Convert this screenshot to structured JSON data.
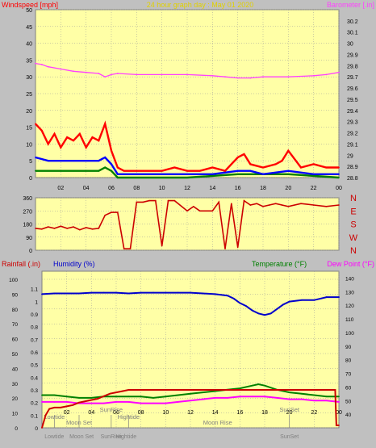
{
  "colors": {
    "frame": "#c0c0c0",
    "plot_bg": "#ffffa6",
    "grid": "#9a9a9a",
    "wind_max": "#ff0000",
    "wind_avg": "#0000ff",
    "wind_min": "#008000",
    "barometer": "#ff40ff",
    "direction": "#cc0000",
    "humidity": "#0000cc",
    "temperature": "#008000",
    "dew_point": "#ff00ff",
    "rainfall": "#cc0000",
    "annotation": "#808080"
  },
  "chart_data": [
    {
      "type": "line",
      "name": "wind-barometer",
      "title": "24 hour graph day : May 01 2020",
      "ylabel_left": "Windspeed [mph]",
      "ylabel_right": "Barometer [.in]",
      "xticks": [
        "02",
        "04",
        "06",
        "08",
        "10",
        "12",
        "14",
        "16",
        "18",
        "20",
        "22",
        "00"
      ],
      "xlim": [
        0,
        24
      ],
      "ylim_left": [
        0,
        50
      ],
      "yticks_left": [
        "0",
        "5",
        "10",
        "15",
        "20",
        "25",
        "30",
        "35",
        "40",
        "45",
        "50"
      ],
      "ylim_right": [
        28.8,
        30.3
      ],
      "yticks_right": [
        "28.8",
        "28.9",
        "29",
        "29.1",
        "29.2",
        "29.3",
        "29.4",
        "29.5",
        "29.6",
        "29.7",
        "29.8",
        "29.9",
        "30",
        "30.1",
        "30.2"
      ],
      "grid": true,
      "series": [
        {
          "name": "Barometer",
          "axis": "right",
          "x": [
            0,
            0.5,
            1,
            2,
            3,
            4,
            5,
            5.5,
            6,
            6.5,
            8,
            10,
            12,
            14,
            15,
            16,
            17,
            18,
            20,
            22,
            23,
            24
          ],
          "values": [
            29.82,
            29.81,
            29.79,
            29.77,
            29.75,
            29.74,
            29.73,
            29.7,
            29.72,
            29.73,
            29.72,
            29.72,
            29.72,
            29.71,
            29.7,
            29.69,
            29.69,
            29.7,
            29.7,
            29.71,
            29.72,
            29.74
          ]
        },
        {
          "name": "Wind max",
          "axis": "left",
          "x": [
            0,
            0.5,
            1,
            1.5,
            2,
            2.5,
            3,
            3.5,
            4,
            4.5,
            5,
            5.5,
            6,
            6.5,
            7,
            8,
            9,
            10,
            11,
            12,
            13,
            14,
            15,
            16,
            16.5,
            17,
            18,
            19,
            19.5,
            20,
            21,
            22,
            23,
            24
          ],
          "values": [
            16,
            14,
            10,
            13,
            9,
            12,
            11,
            13,
            9,
            12,
            11,
            16,
            8,
            3,
            2,
            2,
            2,
            2,
            3,
            2,
            2,
            3,
            2,
            6,
            7,
            4,
            3,
            4,
            5,
            8,
            3,
            4,
            3,
            3
          ]
        },
        {
          "name": "Wind avg",
          "axis": "left",
          "x": [
            0,
            1,
            2,
            3,
            4,
            5,
            5.5,
            6,
            6.5,
            8,
            10,
            12,
            14,
            16,
            17,
            18,
            20,
            22,
            24
          ],
          "values": [
            6,
            5,
            5,
            5,
            5,
            5,
            6,
            4,
            1,
            1,
            1,
            1,
            1,
            2,
            2,
            1,
            2,
            1,
            1
          ]
        },
        {
          "name": "Wind min",
          "axis": "left",
          "x": [
            0,
            1,
            2,
            3,
            4,
            5,
            5.5,
            6,
            6.5,
            8,
            12,
            16,
            20,
            24
          ],
          "values": [
            2,
            2,
            2,
            2,
            2,
            2,
            3,
            2,
            0,
            0,
            0,
            1,
            1,
            0
          ]
        }
      ]
    },
    {
      "type": "line",
      "name": "wind-direction",
      "xlim": [
        0,
        24
      ],
      "ylim_left": [
        0,
        360
      ],
      "yticks_left": [
        "0",
        "90",
        "180",
        "270",
        "360"
      ],
      "ylabels_right": [
        "N",
        "W",
        "S",
        "E",
        "N"
      ],
      "grid": true,
      "series": [
        {
          "name": "Wind direction",
          "x": [
            0,
            0.5,
            1,
            1.5,
            2,
            2.5,
            3,
            3.5,
            4,
            4.5,
            5,
            5.5,
            6,
            6.5,
            7,
            7.5,
            8,
            8.5,
            9,
            9.5,
            10,
            10.5,
            11,
            12,
            12.5,
            13,
            14,
            14.5,
            15,
            15.5,
            16,
            16.5,
            17,
            17.5,
            18,
            18.5,
            19,
            19.5,
            20,
            21,
            22,
            23,
            24
          ],
          "values": [
            150,
            145,
            160,
            150,
            165,
            150,
            160,
            140,
            155,
            145,
            150,
            240,
            260,
            260,
            10,
            10,
            330,
            330,
            340,
            340,
            30,
            340,
            340,
            270,
            300,
            270,
            270,
            330,
            10,
            320,
            20,
            340,
            310,
            320,
            300,
            310,
            320,
            310,
            300,
            320,
            310,
            300,
            310
          ]
        }
      ]
    },
    {
      "type": "line",
      "name": "temp-humidity-rain",
      "ylabel_left_a": "Rainfall (.in)",
      "ylabel_left_b": "Humidity (%)",
      "ylabel_right_a": "Temperature (°F)",
      "ylabel_right_b": "Dew Point (°F)",
      "xticks": [
        "02",
        "04",
        "06",
        "08",
        "10",
        "12",
        "14",
        "16",
        "18",
        "20",
        "22",
        "00"
      ],
      "xlim": [
        0,
        24
      ],
      "yticks_humidity": [
        "0",
        "10",
        "20",
        "30",
        "40",
        "50",
        "60",
        "70",
        "80",
        "90",
        "100"
      ],
      "ylim_humidity": [
        0,
        100
      ],
      "yticks_rain": [
        "0",
        "0.1",
        "0.2",
        "0.3",
        "0.4",
        "0.5",
        "0.6",
        "0.7",
        "0.8",
        "0.9",
        "1",
        "1.1"
      ],
      "ylim_rain": [
        0,
        1.2
      ],
      "yticks_temp": [
        "40",
        "50",
        "60",
        "70",
        "80",
        "90",
        "100",
        "110",
        "120",
        "130",
        "140"
      ],
      "ylim_temp": [
        30,
        145
      ],
      "grid": true,
      "series": [
        {
          "name": "Humidity",
          "axis": "humidity",
          "x": [
            0,
            1,
            2,
            3,
            4,
            5,
            6,
            7,
            8,
            9,
            10,
            11,
            12,
            13,
            14,
            15,
            15.5,
            16,
            16.5,
            17,
            17.5,
            18,
            18.5,
            19,
            19.5,
            20,
            21,
            22,
            23,
            24
          ],
          "values": [
            90,
            90.5,
            90.5,
            90.5,
            91,
            91,
            91,
            90.5,
            91,
            91,
            91,
            91,
            91,
            90.5,
            90,
            89,
            87,
            84,
            82,
            79,
            77,
            76,
            77,
            80,
            83,
            85,
            86,
            86,
            88,
            88
          ]
        },
        {
          "name": "Temperature",
          "axis": "temp",
          "x": [
            0,
            1,
            2,
            3,
            4,
            5,
            6,
            7,
            8,
            9,
            10,
            11,
            12,
            13,
            14,
            15,
            16,
            17,
            17.5,
            18,
            19,
            20,
            21,
            22,
            23,
            24
          ],
          "values": [
            54,
            54,
            53,
            52,
            52,
            53,
            53,
            53,
            53,
            52,
            53,
            54,
            55,
            56,
            57,
            58,
            59,
            61,
            62,
            61,
            58,
            56,
            55,
            54,
            53,
            53
          ]
        },
        {
          "name": "Dew Point",
          "axis": "temp",
          "x": [
            0,
            1,
            2,
            3,
            4,
            5,
            6,
            7,
            8,
            9,
            10,
            11,
            12,
            13,
            14,
            15,
            16,
            17,
            18,
            19,
            20,
            21,
            22,
            23,
            24
          ],
          "values": [
            49,
            49,
            49,
            48,
            48,
            48,
            49,
            49,
            48,
            48,
            48,
            49,
            50,
            51,
            52,
            52,
            53,
            53,
            53,
            52,
            51,
            51,
            50,
            50,
            49
          ]
        },
        {
          "name": "Rainfall",
          "axis": "rain",
          "x": [
            0,
            0.3,
            0.6,
            1,
            1.5,
            2,
            2.5,
            3,
            3.5,
            4,
            4.5,
            5,
            5.5,
            6,
            6.5,
            7,
            8,
            10,
            12,
            14,
            16,
            18,
            20,
            22,
            23.7,
            23.8,
            24
          ],
          "values": [
            0,
            0.1,
            0.15,
            0.16,
            0.16,
            0.17,
            0.18,
            0.2,
            0.21,
            0.22,
            0.23,
            0.25,
            0.27,
            0.28,
            0.29,
            0.3,
            0.3,
            0.3,
            0.3,
            0.3,
            0.3,
            0.3,
            0.3,
            0.3,
            0.3,
            0.02,
            0.02
          ]
        }
      ],
      "annotations": [
        {
          "label": "Lowtide",
          "x": 1.0,
          "row": 1,
          "marker": true
        },
        {
          "label": "Moon Set",
          "x": 3.0,
          "row": 2,
          "marker": true
        },
        {
          "label": "SunRise",
          "x": 5.6,
          "row": 0,
          "marker": true
        },
        {
          "label": "Hightide",
          "x": 7.0,
          "row": 1,
          "marker": true
        },
        {
          "label": "Moon Rise",
          "x": 14.2,
          "row": 2,
          "marker": false
        },
        {
          "label": "SunSet",
          "x": 20.0,
          "row": 0,
          "marker": true
        }
      ],
      "bottom_labels": [
        {
          "label": "Lowtide",
          "x": 1.0
        },
        {
          "label": "Moon Set",
          "x": 3.2
        },
        {
          "label": "SunRise",
          "x": 5.6
        },
        {
          "label": "Hightide",
          "x": 6.8
        },
        {
          "label": "SunSet",
          "x": 20.0
        }
      ]
    }
  ]
}
